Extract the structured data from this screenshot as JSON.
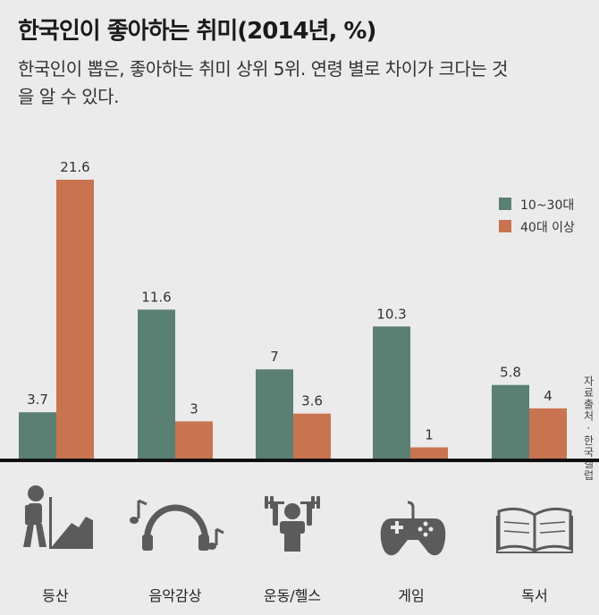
{
  "title": "한국인이 좋아하는 취미(2014년, %)",
  "subtitle": "한국인이 뽑은, 좋아하는 취미 상위 5위. 연령 별로 차이가 크다는 것을 알 수 있다.",
  "source": "자료출처 · 한국갤럽",
  "colors": {
    "young": "#5a7f73",
    "old": "#c97450",
    "icon": "#5b5b5b",
    "baseline": "#111111"
  },
  "chart_data": {
    "type": "bar",
    "title": "한국인이 좋아하는 취미(2014년, %)",
    "categories": [
      "등산",
      "음악감상",
      "운동/헬스",
      "게임",
      "독서"
    ],
    "series": [
      {
        "name": "10~30대",
        "values": [
          3.7,
          11.6,
          7,
          10.3,
          5.8
        ]
      },
      {
        "name": "40대 이상",
        "values": [
          21.6,
          3,
          3.6,
          1,
          4
        ]
      }
    ],
    "value_labels": [
      [
        "3.7",
        "11.6",
        "7",
        "10.3",
        "5.8"
      ],
      [
        "21.6",
        "3",
        "3.6",
        "1",
        "4"
      ]
    ],
    "ylim": [
      0,
      21.6
    ],
    "xlabel": "",
    "ylabel": "",
    "grid": false,
    "legend_position": "top-right",
    "icons": [
      "hiking-icon",
      "headphones-icon",
      "dumbbell-icon",
      "gamepad-icon",
      "book-icon"
    ]
  }
}
